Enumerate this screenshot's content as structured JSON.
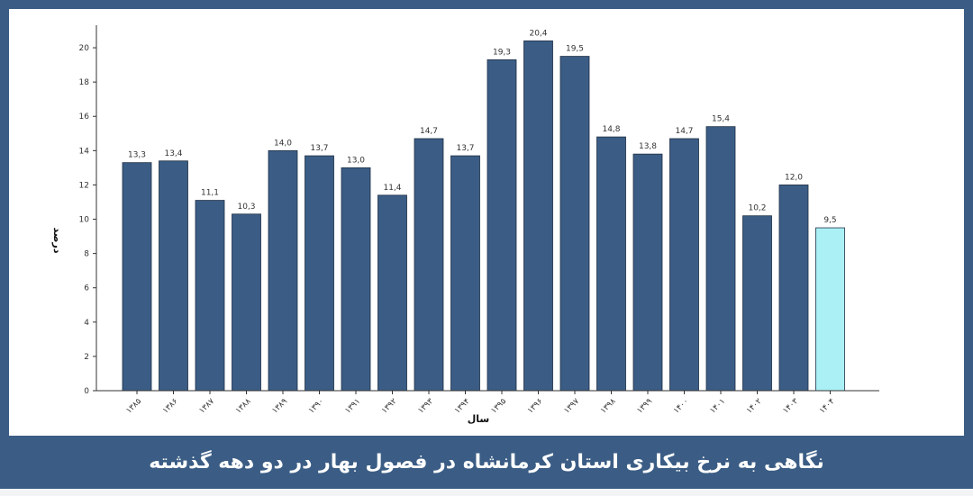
{
  "caption": "نگاهی به نرخ بیکاری استان کرمانشاه در فصول بهار در دو دهه گذشته",
  "colors": {
    "frame": "#3b5d85",
    "bar": "#3b5d85",
    "bar_highlight": "#aaf0f5",
    "axis": "#333333"
  },
  "chart_data": {
    "type": "bar",
    "xlabel": "سال",
    "ylabel": "درصد",
    "ylim": [
      0,
      21
    ],
    "yticks": [
      0,
      2,
      4,
      6,
      8,
      10,
      12,
      14,
      16,
      18,
      20
    ],
    "grid": false,
    "categories": [
      "۱۳۸۵",
      "۱۳۸۶",
      "۱۳۸۷",
      "۱۳۸۸",
      "۱۳۸۹",
      "۱۳۹۰",
      "۱۳۹۱",
      "۱۳۹۲",
      "۱۳۹۳",
      "۱۳۹۴",
      "۱۳۹۵",
      "۱۳۹۶",
      "۱۳۹۷",
      "۱۳۹۸",
      "۱۳۹۹",
      "۱۴۰۰",
      "۱۴۰۱",
      "۱۴۰۲",
      "۱۴۰۳",
      "۱۴۰۴"
    ],
    "values": [
      13.3,
      13.4,
      11.1,
      10.3,
      14.0,
      13.7,
      13.0,
      11.4,
      14.7,
      13.7,
      19.3,
      20.4,
      19.5,
      14.8,
      13.8,
      14.7,
      15.4,
      10.2,
      12.0,
      9.5
    ],
    "value_labels": [
      "13,3",
      "13,4",
      "11,1",
      "10,3",
      "14,0",
      "13,7",
      "13,0",
      "11,4",
      "14,7",
      "13,7",
      "19,3",
      "20,4",
      "19,5",
      "14,8",
      "13,8",
      "14,7",
      "15,4",
      "10,2",
      "12,0",
      "9,5"
    ],
    "highlight_index": 19
  }
}
